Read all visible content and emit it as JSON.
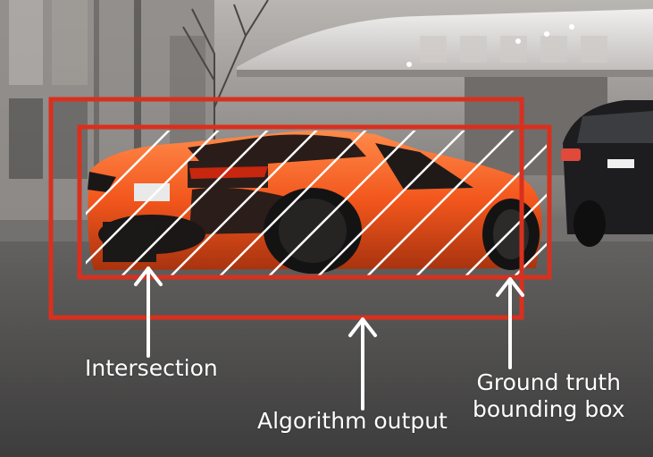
{
  "labels": {
    "intersection": "Intersection",
    "algorithm_output": "Algorithm output",
    "ground_truth_line1": "Ground truth",
    "ground_truth_line2": "bounding box"
  },
  "colors": {
    "box_red": "#d9301e",
    "car_orange": "#ff5a1c",
    "hatch_white": "#ffffff",
    "label_white": "#ffffff"
  }
}
